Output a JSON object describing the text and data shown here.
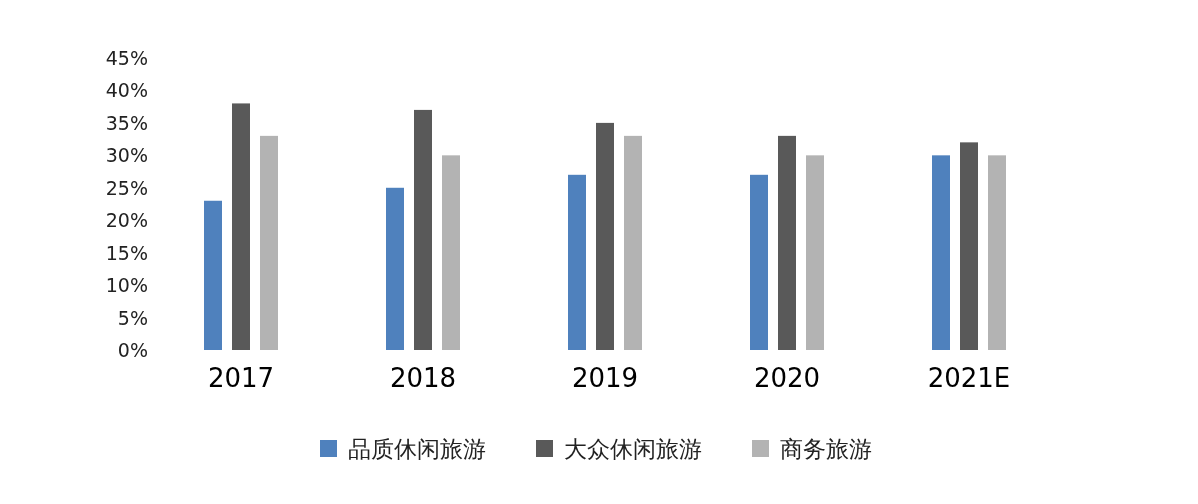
{
  "chart_data": {
    "type": "bar",
    "categories": [
      "2017",
      "2018",
      "2019",
      "2020",
      "2021E"
    ],
    "series": [
      {
        "name": "品质休闲旅游",
        "color": "#4f81bd",
        "values": [
          23,
          25,
          27,
          27,
          30
        ]
      },
      {
        "name": "大众休闲旅游",
        "color": "#595959",
        "values": [
          38,
          37,
          35,
          33,
          32
        ]
      },
      {
        "name": "商务旅游",
        "color": "#b3b3b3",
        "values": [
          33,
          30,
          33,
          30,
          30
        ]
      }
    ],
    "ylim": [
      0,
      45
    ],
    "yticks": [
      {
        "value": 0,
        "label": "0%"
      },
      {
        "value": 5,
        "label": "5%"
      },
      {
        "value": 10,
        "label": "10%"
      },
      {
        "value": 15,
        "label": "15%"
      },
      {
        "value": 20,
        "label": "20%"
      },
      {
        "value": 25,
        "label": "25%"
      },
      {
        "value": 30,
        "label": "30%"
      },
      {
        "value": 35,
        "label": "35%"
      },
      {
        "value": 40,
        "label": "40%"
      },
      {
        "value": 45,
        "label": "45%"
      }
    ],
    "grid": false,
    "legend": "bottom"
  }
}
